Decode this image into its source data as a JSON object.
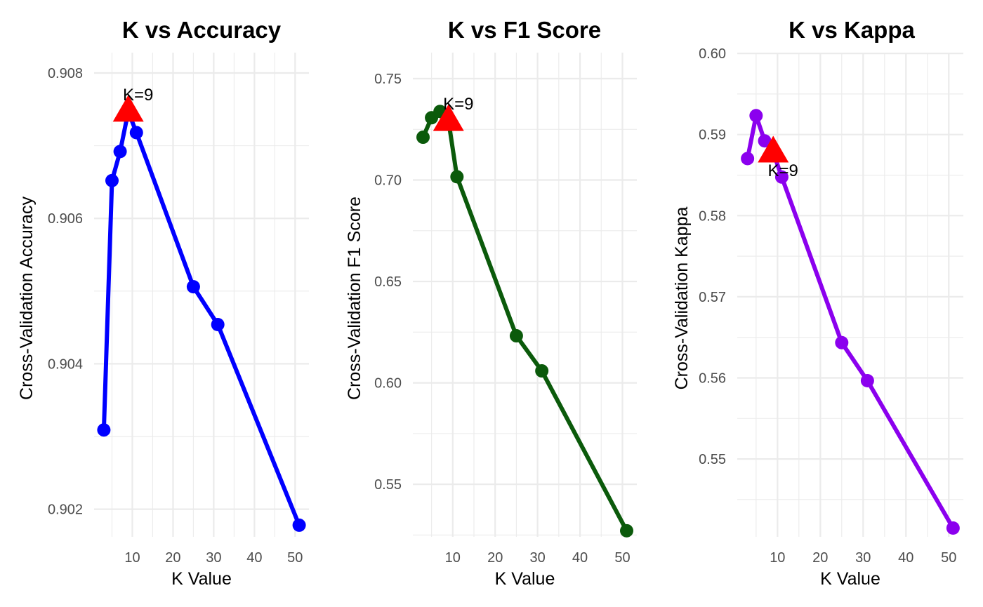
{
  "chart_data": [
    {
      "type": "line",
      "title": "K vs Accuracy",
      "xlabel": "K Value",
      "ylabel": "Cross-Validation Accuracy",
      "color": "#0000FF",
      "x": [
        3,
        5,
        7,
        9,
        11,
        25,
        31,
        51
      ],
      "y": [
        0.90309,
        0.90652,
        0.90692,
        0.90747,
        0.90718,
        0.90506,
        0.90454,
        0.90178
      ],
      "xlim": [
        0.6,
        53.4
      ],
      "ylim": [
        0.90162,
        0.90828
      ],
      "xticks": [
        10,
        20,
        30,
        40,
        50
      ],
      "yticks": [
        0.902,
        0.904,
        0.906,
        0.908
      ],
      "ytick_labels": [
        "0.902",
        "0.904",
        "0.906",
        "0.908"
      ],
      "best": {
        "x": 9,
        "y": 0.90747,
        "label": "K=9",
        "label_position": "above"
      },
      "highlight_color": "#FF0000"
    },
    {
      "type": "line",
      "title": "K vs F1 Score",
      "xlabel": "K Value",
      "ylabel": "Cross-Validation F1 Score",
      "color": "#0B5A0B",
      "x": [
        3,
        5,
        7,
        9,
        11,
        25,
        31,
        51
      ],
      "y": [
        0.7211,
        0.7307,
        0.7338,
        0.7292,
        0.7016,
        0.6232,
        0.6059,
        0.5271
      ],
      "xlim": [
        0.6,
        53.4
      ],
      "ylim": [
        0.5241,
        0.7628
      ],
      "xticks": [
        10,
        20,
        30,
        40,
        50
      ],
      "yticks": [
        0.55,
        0.6,
        0.65,
        0.7,
        0.75
      ],
      "ytick_labels": [
        "0.55",
        "0.60",
        "0.65",
        "0.70",
        "0.75"
      ],
      "best": {
        "x": 9,
        "y": 0.7292,
        "label": "K=9",
        "label_position": "above"
      },
      "highlight_color": "#FF0000"
    },
    {
      "type": "line",
      "title": "K vs Kappa",
      "xlabel": "K Value",
      "ylabel": "Cross-Validation Kappa",
      "color": "#8B00EE",
      "x": [
        3,
        5,
        7,
        9,
        11,
        25,
        31,
        51
      ],
      "y": [
        0.58704,
        0.59233,
        0.58922,
        0.58781,
        0.58476,
        0.56434,
        0.55965,
        0.54148
      ],
      "xlim": [
        0.6,
        53.4
      ],
      "ylim": [
        0.5404,
        0.6001
      ],
      "xticks": [
        10,
        20,
        30,
        40,
        50
      ],
      "yticks": [
        0.55,
        0.56,
        0.57,
        0.58,
        0.59,
        0.6
      ],
      "ytick_labels": [
        "0.55",
        "0.56",
        "0.57",
        "0.58",
        "0.59",
        "0.60"
      ],
      "best": {
        "x": 9,
        "y": 0.58781,
        "label": "K=9",
        "label_position": "below"
      },
      "highlight_color": "#FF0000"
    }
  ]
}
